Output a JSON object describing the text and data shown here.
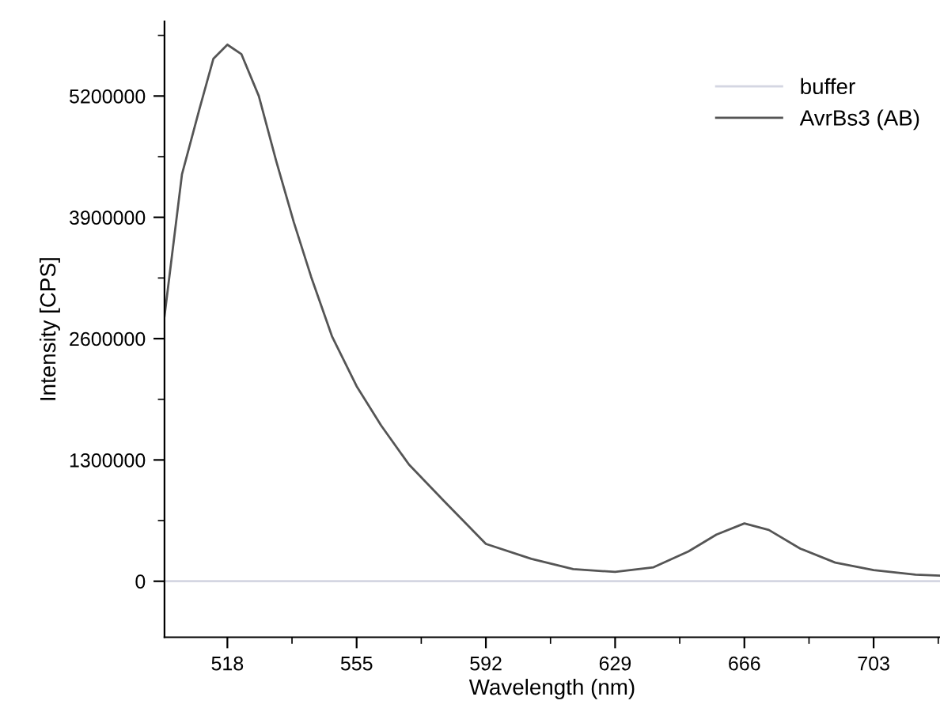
{
  "chart_data": {
    "type": "line",
    "xlabel": "Wavelength (nm)",
    "ylabel": "Intensity [CPS]",
    "xlim": [
      500,
      722
    ],
    "xticks": [
      518,
      555,
      592,
      629,
      666,
      703
    ],
    "ylim": [
      -600000,
      6000000
    ],
    "yticks": [
      0,
      1300000,
      2600000,
      3900000,
      5200000
    ],
    "legend": "top right",
    "grid": false,
    "marker": "none",
    "line_style": "solid",
    "series": [
      {
        "name": "buffer",
        "color": "#d4d6e2",
        "x": [
          500,
          722
        ],
        "values": [
          0,
          0
        ]
      },
      {
        "name": "AvrBs3 (AB)",
        "color": "#555555",
        "x": [
          500,
          505,
          510,
          514,
          518,
          522,
          527,
          532,
          537,
          542,
          548,
          555,
          562,
          570,
          580,
          592,
          605,
          617,
          629,
          640,
          650,
          658,
          666,
          673,
          682,
          692,
          703,
          715,
          722
        ],
        "values": [
          2840000,
          4360000,
          5060000,
          5600000,
          5750000,
          5650000,
          5200000,
          4500000,
          3850000,
          3260000,
          2620000,
          2090000,
          1670000,
          1250000,
          860000,
          400000,
          240000,
          130000,
          100000,
          150000,
          320000,
          500000,
          620000,
          550000,
          350000,
          200000,
          120000,
          70000,
          60000
        ]
      }
    ]
  }
}
